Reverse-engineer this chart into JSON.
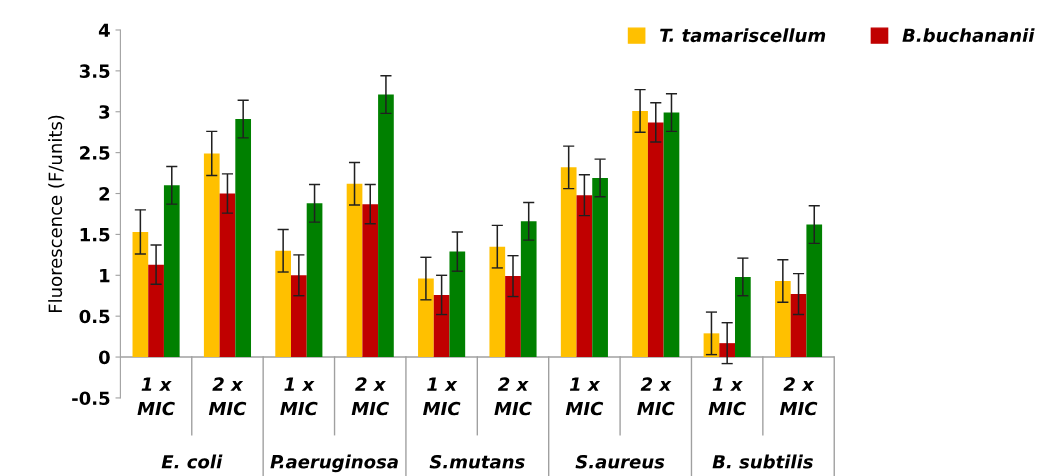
{
  "chart_data": {
    "type": "bar",
    "ylabel": "Fluorescence (F/units)",
    "categories": [
      "1 x\nMIC",
      "2 x\nMIC",
      "1 x\nMIC",
      "2 x\nMIC",
      "1 x\nMIC",
      "2 x\nMIC",
      "1 x\nMIC",
      "2 x\nMIC",
      "1 x\nMIC",
      "2 x\nMIC"
    ],
    "annotations": [
      "E. coli",
      "P.aeruginosa",
      "S.mutans",
      "S.aureus",
      "B. subtilis"
    ],
    "series": [
      {
        "name": "T. tamariscellum",
        "color": "#ffc000",
        "values": [
          1.53,
          2.49,
          1.3,
          2.12,
          0.96,
          1.35,
          2.32,
          3.01,
          0.29,
          0.93
        ],
        "errors": [
          0.27,
          0.27,
          0.26,
          0.26,
          0.26,
          0.26,
          0.26,
          0.26,
          0.26,
          0.26
        ]
      },
      {
        "name": "B.buchananii",
        "color": "#c00000",
        "values": [
          1.13,
          2.0,
          1.0,
          1.87,
          0.76,
          0.99,
          1.98,
          2.87,
          0.17,
          0.77
        ],
        "errors": [
          0.24,
          0.24,
          0.25,
          0.24,
          0.24,
          0.25,
          0.25,
          0.24,
          0.25,
          0.25
        ]
      },
      {
        "color": "#008000",
        "values": [
          2.1,
          2.91,
          1.88,
          3.21,
          1.29,
          1.66,
          2.19,
          2.99,
          0.98,
          1.62
        ],
        "errors": [
          0.23,
          0.23,
          0.23,
          0.23,
          0.24,
          0.23,
          0.23,
          0.23,
          0.23,
          0.23
        ]
      }
    ],
    "ylim": [
      -0.5,
      4
    ],
    "yticks": [
      -0.5,
      0,
      0.5,
      1,
      1.5,
      2,
      2.5,
      3,
      3.5,
      4
    ],
    "grid": false,
    "legend": "top right"
  }
}
